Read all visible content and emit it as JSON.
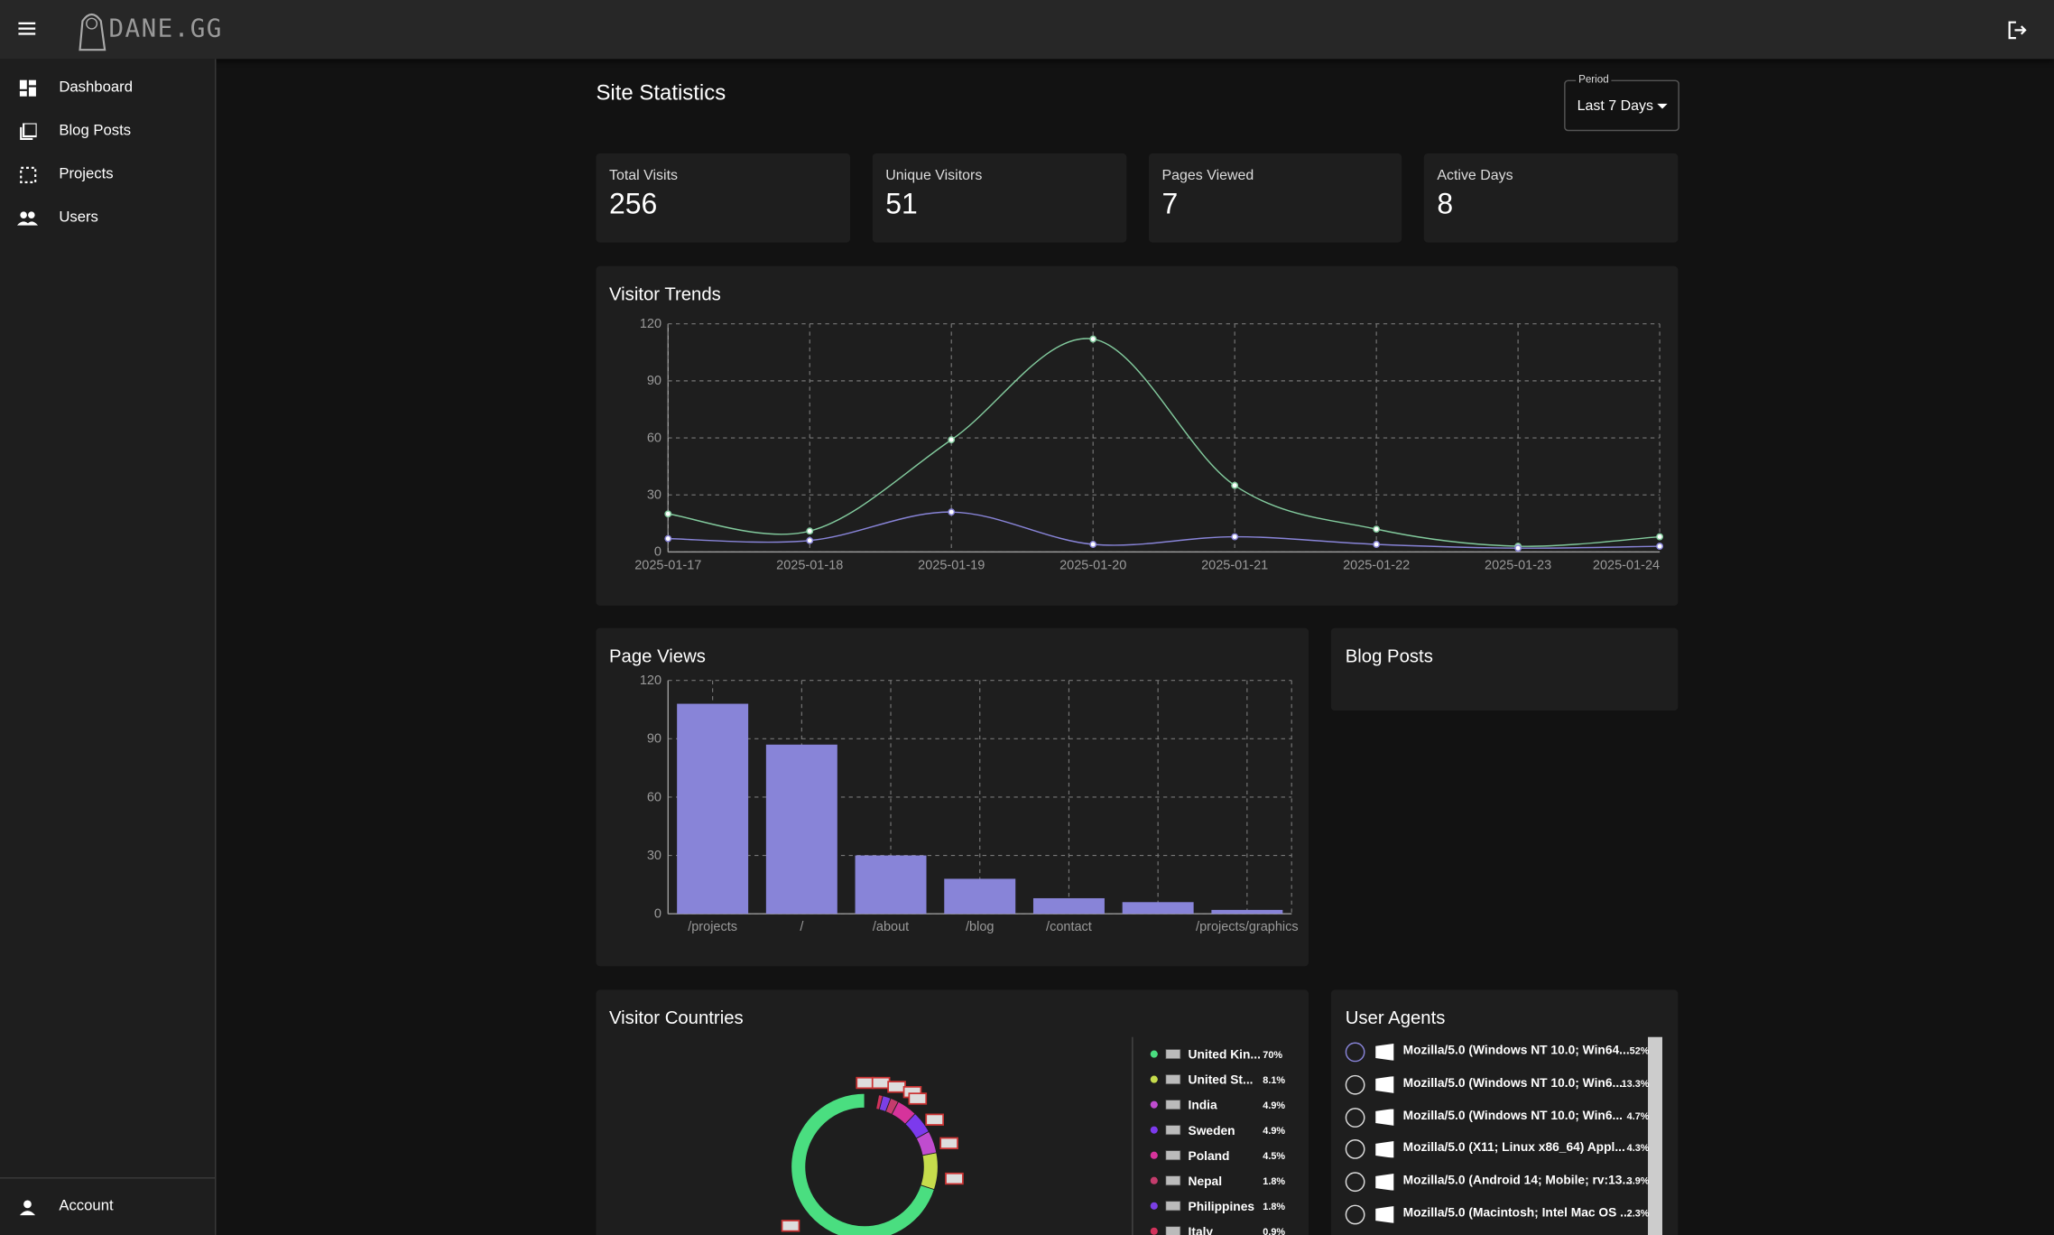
{
  "header": {
    "logo": "DANE.GG"
  },
  "sidebar": {
    "items": [
      "Dashboard",
      "Blog Posts",
      "Projects",
      "Users"
    ],
    "account": "Account"
  },
  "page": {
    "title": "Site Statistics",
    "period_label": "Period",
    "period": "Last 7 Days"
  },
  "stats": [
    {
      "label": "Total Visits",
      "value": 256
    },
    {
      "label": "Unique Visitors",
      "value": 51
    },
    {
      "label": "Pages Viewed",
      "value": 7
    },
    {
      "label": "Active Days",
      "value": 8
    }
  ],
  "visitor_trends": {
    "type": "line",
    "title": "Visitor Trends",
    "x": [
      "2025-01-17",
      "2025-01-18",
      "2025-01-19",
      "2025-01-20",
      "2025-01-21",
      "2025-01-22",
      "2025-01-23",
      "2025-01-24"
    ],
    "series": [
      {
        "color": "#82ca9d",
        "values": [
          20,
          11,
          59,
          112,
          35,
          12,
          3,
          8
        ]
      },
      {
        "color": "#8884d8",
        "values": [
          7,
          6,
          21,
          4,
          8,
          4,
          2,
          3
        ]
      }
    ],
    "ylim": [
      0,
      120
    ],
    "yticks": [
      0,
      30,
      60,
      90,
      120
    ],
    "grid": true
  },
  "page_views": {
    "type": "bar",
    "title": "Page Views",
    "categories": [
      "/projects",
      "/",
      "/about",
      "/blog",
      "/contact",
      null,
      "/projects/graphics"
    ],
    "values": [
      108,
      87,
      30,
      18,
      8,
      6,
      2
    ],
    "color": "#8884d8",
    "ylim": [
      0,
      120
    ],
    "yticks": [
      0,
      30,
      60,
      90,
      120
    ],
    "grid": true
  },
  "blog_posts": {
    "title": "Blog Posts"
  },
  "visitor_countries": {
    "type": "pie",
    "title": "Visitor Countries",
    "categories": [
      "United Kin...",
      "United St...",
      "India",
      "Sweden",
      "Poland",
      "Nepal",
      "Philippines",
      "Italy"
    ],
    "values": [
      70,
      8.1,
      4.9,
      4.9,
      4.5,
      1.8,
      1.8,
      0.9
    ],
    "value_labels": [
      "70%",
      "8.1%",
      "4.9%",
      "4.9%",
      "4.5%",
      "1.8%",
      "1.8%",
      "0.9%"
    ],
    "colors": [
      "#4ade80",
      "#c6dc4c",
      "#c04ccf",
      "#7c3aed",
      "#d6339b",
      "#c43c6c",
      "#7b3fe4",
      "#d1325b"
    ]
  },
  "user_agents": {
    "title": "User Agents",
    "rows": [
      {
        "text": "Mozilla/5.0 (Windows NT 10.0; Win64...",
        "share": "52%"
      },
      {
        "text": "Mozilla/5.0 (Windows NT 10.0; Win6...",
        "share": "13.3%"
      },
      {
        "text": "Mozilla/5.0 (Windows NT 10.0; Win6...",
        "share": "4.7%"
      },
      {
        "text": "Mozilla/5.0 (X11; Linux x86_64) Appl...",
        "share": "4.3%"
      },
      {
        "text": "Mozilla/5.0 (Android 14; Mobile; rv:13...",
        "share": "3.9%"
      },
      {
        "text": "Mozilla/5.0 (Macintosh; Intel Mac OS ...",
        "share": "2.3%"
      }
    ]
  }
}
